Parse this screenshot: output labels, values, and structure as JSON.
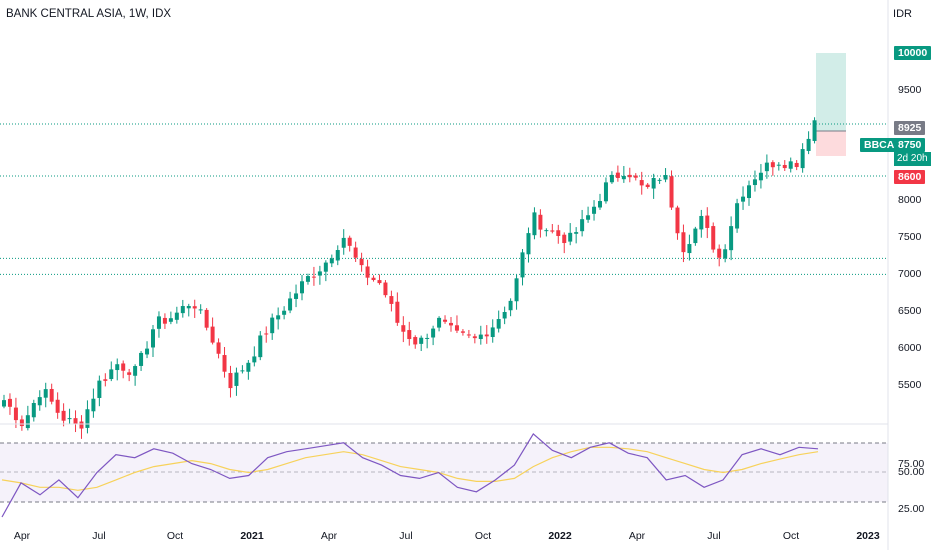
{
  "header": {
    "title": "BANK CENTRAL ASIA, 1W, IDX",
    "currency": "IDR"
  },
  "price_axis": {
    "ticks": [
      "10000",
      "9500",
      "8925",
      "8750",
      "8600",
      "8000",
      "7500",
      "7000",
      "6500",
      "6000",
      "5500"
    ]
  },
  "rsi_axis": {
    "ticks": [
      "75.00",
      "50.00",
      "25.00"
    ]
  },
  "time_axis": {
    "ticks": [
      {
        "label": "Apr",
        "bold": false
      },
      {
        "label": "Jul",
        "bold": false
      },
      {
        "label": "Oct",
        "bold": false
      },
      {
        "label": "2021",
        "bold": true
      },
      {
        "label": "Apr",
        "bold": false
      },
      {
        "label": "Jul",
        "bold": false
      },
      {
        "label": "Oct",
        "bold": false
      },
      {
        "label": "2022",
        "bold": true
      },
      {
        "label": "Apr",
        "bold": false
      },
      {
        "label": "Jul",
        "bold": false
      },
      {
        "label": "Oct",
        "bold": false
      },
      {
        "label": "2023",
        "bold": true
      }
    ]
  },
  "position": {
    "take_profit": "10000",
    "entry": "8925",
    "stop_loss": "8600",
    "symbol": "BBCA",
    "last_price": "8750",
    "countdown": "2d 20h"
  },
  "levels": [
    8750,
    8100,
    7070,
    6870
  ],
  "colors": {
    "up": "#089981",
    "down": "#f23645",
    "rsi": "#7e57c2",
    "rsi_ma": "#f7d25b",
    "level": "#089981"
  },
  "chart_data": {
    "type": "candlestick",
    "title": "BANK CENTRAL ASIA, 1W, IDX",
    "ylabel": "IDR",
    "ylim": [
      5000,
      10300
    ],
    "close_path": [
      5300,
      5000,
      5450,
      5100,
      4950,
      5500,
      5750,
      5650,
      6250,
      6350,
      6550,
      6100,
      5500,
      5800,
      6200,
      6500,
      6800,
      7000,
      7350,
      6900,
      6750,
      6200,
      6000,
      6300,
      6100,
      6050,
      6250,
      6600,
      7600,
      7400,
      7300,
      7600,
      8000,
      8200,
      7900,
      8150,
      7200,
      7550,
      7050,
      7850,
      8150,
      8300,
      8250,
      8800
    ],
    "rsi": {
      "ylim": [
        20,
        80
      ],
      "levels": [
        70,
        50,
        30
      ],
      "series": [
        20,
        43,
        35,
        45,
        33,
        50,
        62,
        60,
        66,
        63,
        56,
        52,
        46,
        48,
        60,
        64,
        66,
        68,
        70,
        60,
        55,
        48,
        46,
        50,
        40,
        37,
        45,
        55,
        76,
        65,
        60,
        67,
        70,
        63,
        60,
        45,
        48,
        40,
        45,
        62,
        66,
        62,
        67,
        66
      ],
      "ma": [
        45,
        43,
        40,
        40,
        38,
        40,
        45,
        50,
        54,
        56,
        58,
        56,
        52,
        50,
        52,
        56,
        60,
        62,
        64,
        62,
        58,
        54,
        52,
        50,
        46,
        44,
        44,
        46,
        54,
        60,
        64,
        67,
        67,
        66,
        64,
        60,
        56,
        52,
        50,
        52,
        56,
        59,
        62,
        64
      ]
    }
  }
}
